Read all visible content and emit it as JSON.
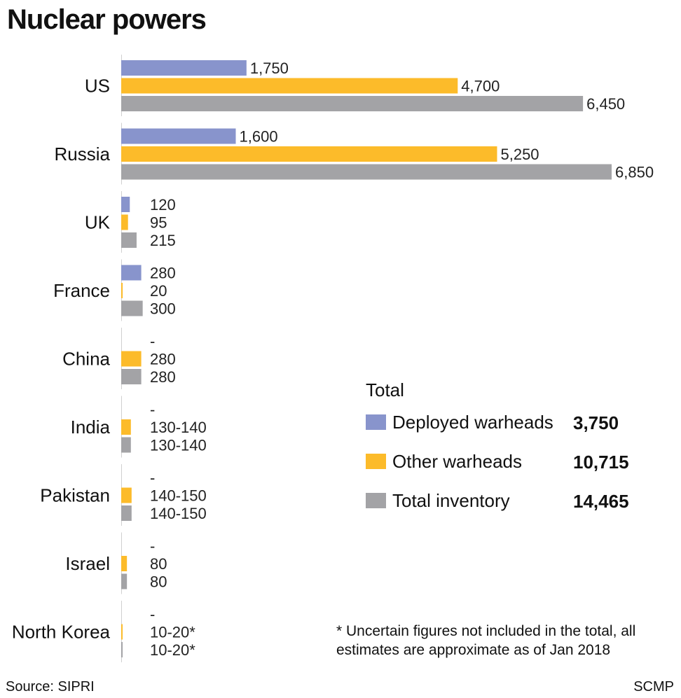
{
  "title": "Nuclear powers",
  "note": "* Uncertain figures not included in the total, all estimates are approximate as of Jan 2018",
  "source": "Source: SIPRI",
  "credit": "SCMP",
  "colors": {
    "deployed": "#8894cc",
    "other": "#fcbb2a",
    "total": "#a3a3a6",
    "axis": "#d0d0d0"
  },
  "chart_data": {
    "type": "bar",
    "orientation": "horizontal",
    "title": "Nuclear powers",
    "categories": [
      "US",
      "Russia",
      "UK",
      "France",
      "China",
      "India",
      "Pakistan",
      "Israel",
      "North Korea"
    ],
    "series": [
      {
        "name": "Deployed warheads",
        "color": "#8894cc",
        "values": [
          1750,
          1600,
          120,
          280,
          null,
          null,
          null,
          null,
          null
        ],
        "labels": [
          "1,750",
          "1,600",
          "120",
          "280",
          "-",
          "-",
          "-",
          "-",
          "-"
        ]
      },
      {
        "name": "Other warheads",
        "color": "#fcbb2a",
        "values": [
          4700,
          5250,
          95,
          20,
          280,
          135,
          145,
          80,
          15
        ],
        "labels": [
          "4,700",
          "5,250",
          "95",
          "20",
          "280",
          "130-140",
          "140-150",
          "80",
          "10-20*"
        ]
      },
      {
        "name": "Total inventory",
        "color": "#a3a3a6",
        "values": [
          6450,
          6850,
          215,
          300,
          280,
          135,
          145,
          80,
          15
        ],
        "labels": [
          "6,450",
          "6,850",
          "215",
          "300",
          "280",
          "130-140",
          "140-150",
          "80",
          "10-20*"
        ]
      }
    ],
    "legend": {
      "title": "Total",
      "placement": "right",
      "items": [
        {
          "name": "Deployed warheads",
          "color": "#8894cc",
          "total": "3,750"
        },
        {
          "name": "Other warheads",
          "color": "#fcbb2a",
          "total": "10,715"
        },
        {
          "name": "Total inventory",
          "color": "#a3a3a6",
          "total": "14,465"
        }
      ]
    },
    "xlim": [
      0,
      6850
    ],
    "grid": false
  }
}
